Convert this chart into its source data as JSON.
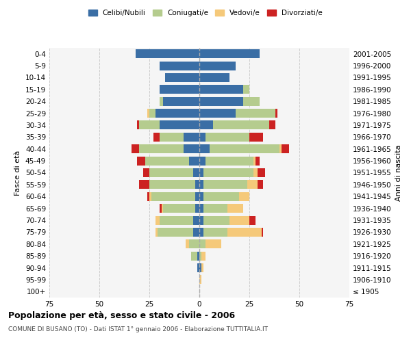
{
  "age_groups": [
    "100+",
    "95-99",
    "90-94",
    "85-89",
    "80-84",
    "75-79",
    "70-74",
    "65-69",
    "60-64",
    "55-59",
    "50-54",
    "45-49",
    "40-44",
    "35-39",
    "30-34",
    "25-29",
    "20-24",
    "15-19",
    "10-14",
    "5-9",
    "0-4"
  ],
  "birth_years": [
    "≤ 1905",
    "1906-1910",
    "1911-1915",
    "1916-1920",
    "1921-1925",
    "1926-1930",
    "1931-1935",
    "1936-1940",
    "1941-1945",
    "1946-1950",
    "1951-1955",
    "1956-1960",
    "1961-1965",
    "1966-1970",
    "1971-1975",
    "1976-1980",
    "1981-1985",
    "1986-1990",
    "1991-1995",
    "1996-2000",
    "2001-2005"
  ],
  "male": {
    "celibi": [
      0,
      0,
      1,
      1,
      0,
      3,
      3,
      2,
      2,
      2,
      3,
      5,
      8,
      8,
      20,
      22,
      18,
      20,
      17,
      20,
      32
    ],
    "coniugati": [
      0,
      0,
      0,
      3,
      5,
      18,
      17,
      16,
      22,
      23,
      22,
      22,
      22,
      12,
      10,
      3,
      2,
      0,
      0,
      0,
      0
    ],
    "vedovi": [
      0,
      0,
      0,
      0,
      2,
      1,
      2,
      1,
      1,
      0,
      0,
      0,
      0,
      0,
      0,
      1,
      0,
      0,
      0,
      0,
      0
    ],
    "divorziati": [
      0,
      0,
      0,
      0,
      0,
      0,
      0,
      1,
      1,
      5,
      3,
      4,
      4,
      3,
      1,
      0,
      0,
      0,
      0,
      0,
      0
    ]
  },
  "female": {
    "nubili": [
      0,
      0,
      1,
      0,
      0,
      2,
      2,
      2,
      2,
      2,
      2,
      3,
      5,
      3,
      7,
      18,
      22,
      22,
      15,
      18,
      30
    ],
    "coniugate": [
      0,
      0,
      0,
      1,
      3,
      12,
      13,
      12,
      18,
      22,
      25,
      24,
      35,
      22,
      28,
      20,
      8,
      3,
      0,
      0,
      0
    ],
    "vedove": [
      0,
      1,
      1,
      2,
      8,
      17,
      10,
      8,
      5,
      5,
      2,
      1,
      1,
      0,
      0,
      0,
      0,
      0,
      0,
      0,
      0
    ],
    "divorziate": [
      0,
      0,
      0,
      0,
      0,
      1,
      3,
      0,
      0,
      3,
      4,
      2,
      4,
      7,
      3,
      1,
      0,
      0,
      0,
      0,
      0
    ]
  },
  "colors": {
    "celibi": "#3a6ea5",
    "coniugati": "#b5cc8e",
    "vedovi": "#f5c97a",
    "divorziati": "#cc2222"
  },
  "xlim": 75,
  "title": "Popolazione per età, sesso e stato civile - 2006",
  "subtitle": "COMUNE DI BUSANO (TO) - Dati ISTAT 1° gennaio 2006 - Elaborazione TUTTITALIA.IT",
  "ylabel_left": "Fasce di età",
  "ylabel_right": "Anni di nascita",
  "bg_color": "#f5f5f5",
  "grid_color": "#cccccc"
}
